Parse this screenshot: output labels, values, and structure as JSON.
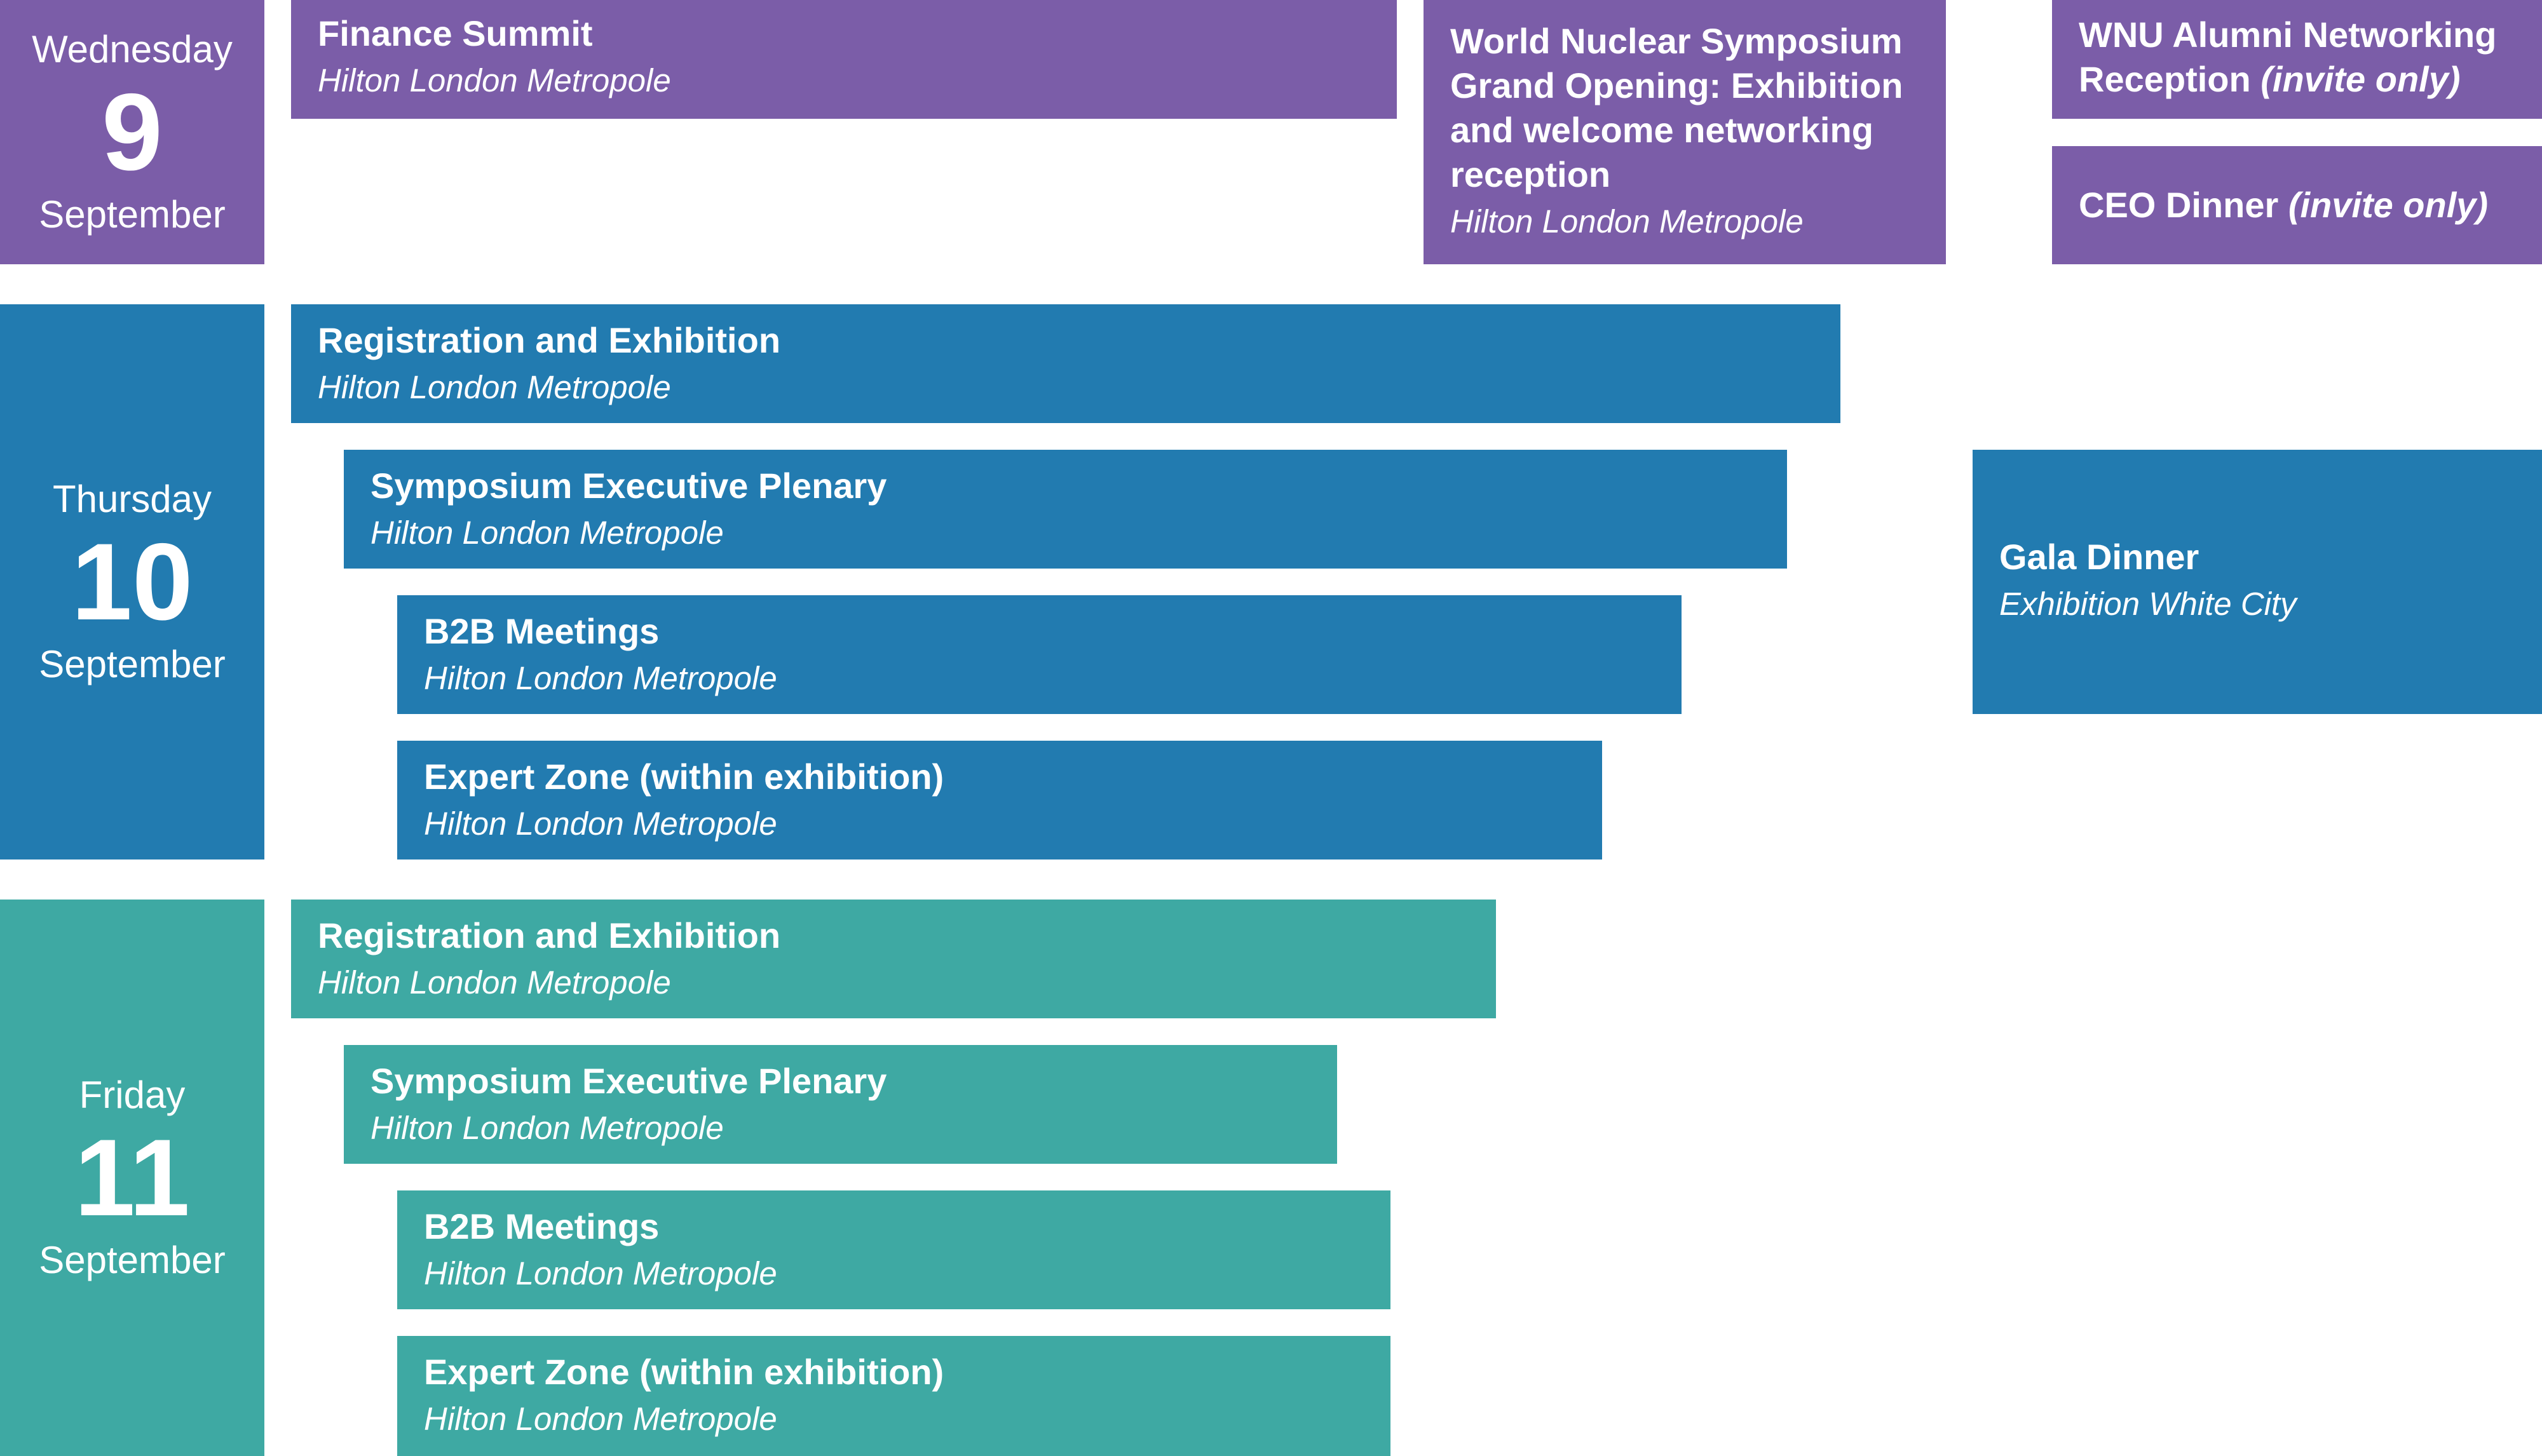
{
  "colors": {
    "wednesday": "#7b5da8",
    "thursday": "#227bb0",
    "friday": "#3ea9a3",
    "text": "#ffffff"
  },
  "days": [
    {
      "weekday": "Wednesday",
      "date": "9",
      "month": "September"
    },
    {
      "weekday": "Thursday",
      "date": "10",
      "month": "September"
    },
    {
      "weekday": "Friday",
      "date": "11",
      "month": "September"
    }
  ],
  "wednesday_events": [
    {
      "title": "Finance Summit",
      "venue": "Hilton London Metropole"
    },
    {
      "title": "World Nuclear Symposium Grand Opening: Exhibition and welcome networking reception",
      "venue": "Hilton London Metropole"
    },
    {
      "title": "WNU Alumni Networking Reception",
      "note": "(invite only)"
    },
    {
      "title": "CEO Dinner",
      "note": "(invite only)"
    }
  ],
  "thursday_events": [
    {
      "title": "Registration and Exhibition",
      "venue": "Hilton London Metropole"
    },
    {
      "title": "Symposium Executive Plenary",
      "venue": "Hilton London Metropole"
    },
    {
      "title": "B2B Meetings",
      "venue": "Hilton London Metropole"
    },
    {
      "title": "Expert Zone (within exhibition)",
      "venue": "Hilton London Metropole"
    },
    {
      "title": "Gala Dinner",
      "venue": "Exhibition White City"
    }
  ],
  "friday_events": [
    {
      "title": "Registration and Exhibition",
      "venue": "Hilton London Metropole"
    },
    {
      "title": "Symposium Executive Plenary",
      "venue": "Hilton London Metropole"
    },
    {
      "title": "B2B Meetings",
      "venue": "Hilton London Metropole"
    },
    {
      "title": "Expert Zone (within exhibition)",
      "venue": "Hilton London Metropole"
    }
  ]
}
